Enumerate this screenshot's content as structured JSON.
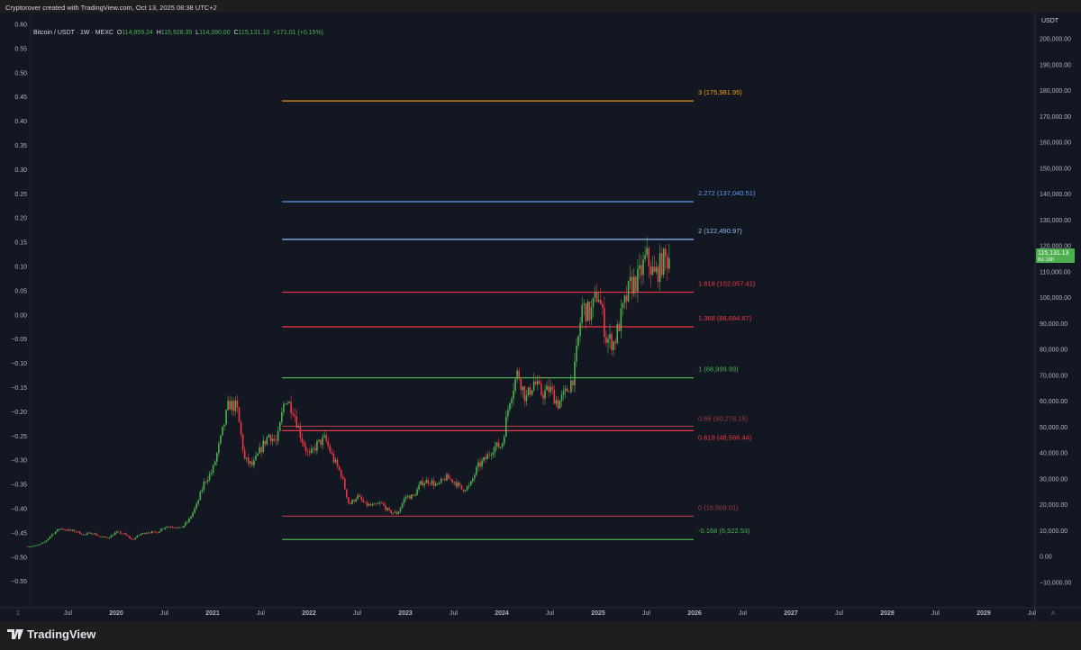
{
  "credit": "Cryptorover created with TradingView.com, Oct 13, 2025 08:38 UTC+2",
  "legend": {
    "symbol": "Bitcoin / USDT · 1W · MEXC",
    "open_label": "O",
    "open": "114,959.24",
    "high_label": "H",
    "high": "115,928.35",
    "low_label": "L",
    "low": "114,390.00",
    "close_label": "C",
    "close": "115,131.13",
    "change": "+171.01 (+0.15%)"
  },
  "footer": {
    "brand": "TradingView"
  },
  "colors": {
    "up": "#26a69a",
    "up_candle": "#4caf50",
    "down_candle": "#f23645",
    "background": "#131722",
    "price_tag": "#4caf50"
  },
  "chart_data": {
    "type": "candlestick",
    "interval": "1W",
    "right_axis": {
      "unit_label": "USDT",
      "ylim": [
        -10000,
        200000
      ],
      "ticks": [
        "200,000.00",
        "190,000.00",
        "180,000.00",
        "170,000.00",
        "160,000.00",
        "150,000.00",
        "140,000.00",
        "130,000.00",
        "120,000.00",
        "110,000.00",
        "100,000.00",
        "90,000.00",
        "80,000.00",
        "70,000.00",
        "60,000.00",
        "50,000.00",
        "40,000.00",
        "30,000.00",
        "20,000.00",
        "10,000.00",
        "0.00",
        "−10,000.00"
      ]
    },
    "left_axis": {
      "ticks": [
        "0.60",
        "0.55",
        "0.50",
        "0.45",
        "0.40",
        "0.35",
        "0.30",
        "0.25",
        "0.20",
        "0.15",
        "0.10",
        "0.05",
        "0.00",
        "−0.05",
        "−0.10",
        "−0.15",
        "−0.20",
        "−0.25",
        "−0.30",
        "−0.35",
        "−0.40",
        "−0.45",
        "−0.50",
        "−0.55"
      ]
    },
    "x_axis": {
      "ticks": [
        "Jul",
        "2020",
        "Jul",
        "2021",
        "Jul",
        "2022",
        "Jul",
        "2023",
        "Jul",
        "2024",
        "Jul",
        "2025",
        "Jul",
        "2026",
        "Jul",
        "2027",
        "Jul",
        "2028",
        "Jul",
        "2029",
        "Jul"
      ],
      "left_button": "Z",
      "right_button": "A"
    },
    "price_tag": {
      "value": "115,131.13",
      "countdown": "6d 18h"
    },
    "monthly_closes_from": "2019-02",
    "monthly_closes": [
      3800,
      4100,
      5300,
      8500,
      10800,
      10100,
      9600,
      8300,
      9200,
      7550,
      7200,
      9350,
      8600,
      6400,
      8600,
      9450,
      9140,
      11350,
      11650,
      10780,
      13800,
      19700,
      29000,
      33100,
      45200,
      58800,
      57700,
      37300,
      35000,
      41500,
      47100,
      43800,
      61300,
      57000,
      46300,
      38500,
      43200,
      45500,
      37700,
      31800,
      19900,
      23300,
      20050,
      19400,
      20500,
      17150,
      16550,
      23100,
      23150,
      28500,
      29250,
      27200,
      30450,
      29200,
      25950,
      26950,
      34650,
      37700,
      42300,
      42600,
      61200,
      71300,
      60700,
      67500,
      62700,
      64600,
      59000,
      63300,
      70200,
      96400,
      93400,
      102400,
      84300,
      82500,
      94200,
      104600,
      107100,
      115700,
      108200,
      114000,
      115131
    ],
    "fib_levels": [
      {
        "label": "3 (175,981.95)",
        "value": 175981.95,
        "color": "#f7a21b"
      },
      {
        "label": "2.272 (137,040.51)",
        "value": 137040.51,
        "color": "#5b9cf6"
      },
      {
        "label": "2 (122,490.97)",
        "value": 122490.97,
        "color": "#90bff9"
      },
      {
        "label": "1.618 (102,057.41)",
        "value": 102057.41,
        "color": "#f23645"
      },
      {
        "label": "1.368 (88,684.67)",
        "value": 88684.67,
        "color": "#f23645"
      },
      {
        "label": "1 (68,999.99)",
        "value": 68999.99,
        "color": "#4caf50"
      },
      {
        "label": "0.65 (50,278.15)",
        "value": 50278.15,
        "color": "#a83a44"
      },
      {
        "label": "0.618 (48,566.44)",
        "value": 48566.44,
        "color": "#f23645"
      },
      {
        "label": "0 (15,509.01)",
        "value": 15509.01,
        "color": "#a83a44"
      },
      {
        "label": "-0.168 (6,522.53)",
        "value": 6522.53,
        "color": "#4caf50"
      }
    ],
    "fib_start": "2021-11",
    "fib_end": "2026-01"
  }
}
